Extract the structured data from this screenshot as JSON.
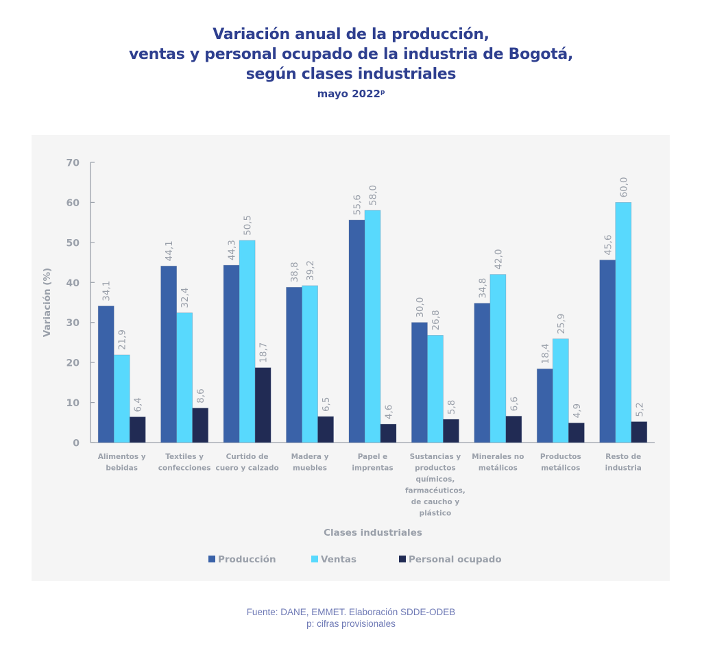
{
  "chart_data": {
    "type": "bar",
    "title_lines": [
      "Variación anual de la producción,",
      "ventas y personal ocupado de la industria de Bogotá,",
      "según clases industriales"
    ],
    "subtitle": "mayo 2022",
    "subtitle_superscript": "p",
    "xlabel": "Clases industriales",
    "ylabel": "Variación (%)",
    "ylim": [
      0,
      70
    ],
    "yticks": [
      0,
      10,
      20,
      30,
      40,
      50,
      60,
      70
    ],
    "grid": false,
    "legend_position": "bottom",
    "categories": [
      [
        "Alimentos y",
        "bebidas"
      ],
      [
        "Textiles y",
        "confecciones"
      ],
      [
        "Curtido de",
        "cuero y calzado"
      ],
      [
        "Madera y",
        "muebles"
      ],
      [
        "Papel e",
        "imprentas"
      ],
      [
        "Sustancias y",
        "productos",
        "químicos,",
        "farmacéuticos,",
        "de caucho y",
        "plástico"
      ],
      [
        "Minerales no",
        "metálicos"
      ],
      [
        "Productos",
        "metálicos"
      ],
      [
        "Resto de",
        "industria"
      ]
    ],
    "series": [
      {
        "name": "Producción",
        "color": "#3a62a8",
        "values": [
          34.1,
          44.1,
          44.3,
          38.8,
          55.6,
          30.0,
          34.8,
          18.4,
          45.6
        ]
      },
      {
        "name": "Ventas",
        "color": "#58d9fd",
        "values": [
          21.9,
          32.4,
          50.5,
          39.2,
          58.0,
          26.8,
          42.0,
          25.9,
          60.0
        ]
      },
      {
        "name": "Personal ocupado",
        "color": "#212b54",
        "values": [
          6.4,
          8.6,
          18.7,
          6.5,
          4.6,
          5.8,
          6.6,
          4.9,
          5.2
        ]
      }
    ],
    "decimal_separator": ","
  },
  "footer": {
    "source": "Fuente: DANE, EMMET. Elaboración SDDE-ODEB",
    "note": "p: cifras provisionales"
  },
  "colors": {
    "title": "#2e3f8f",
    "axis_text": "#9aa0aa",
    "panel_bg": "#f5f5f5",
    "footer": "#6e79b5"
  }
}
